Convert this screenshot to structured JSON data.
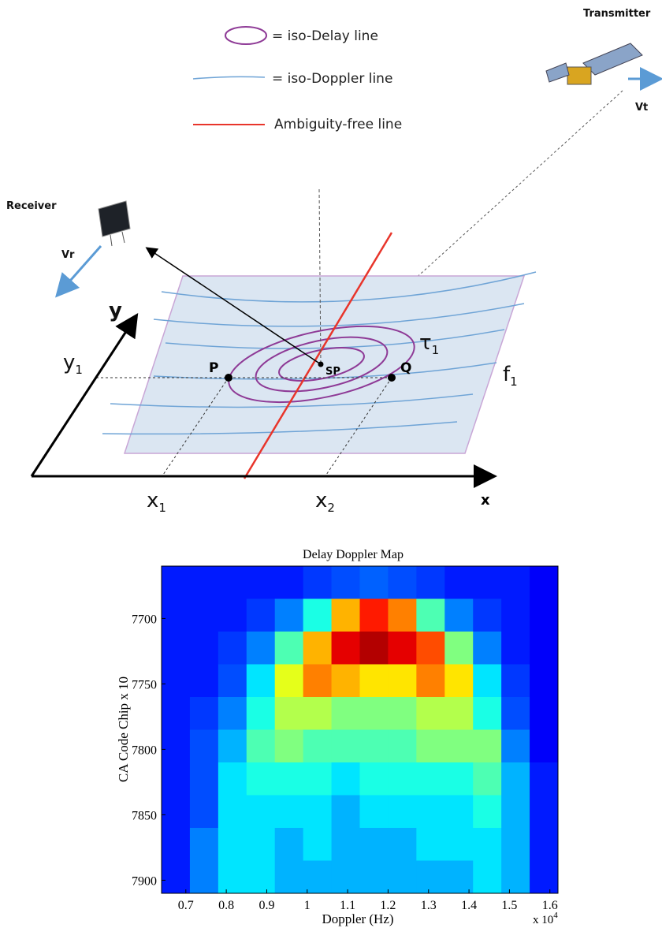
{
  "diagram": {
    "legend": {
      "delay": "= iso-Delay line",
      "doppler": "= iso-Doppler line",
      "ambiguity": "Ambiguity-free line"
    },
    "transmitter": "Transmitter",
    "vt": "Vt",
    "receiver": "Receiver",
    "vr": "Vr",
    "y_axis": "y",
    "x_axis": "x",
    "y1": {
      "base": "y",
      "sub": "1"
    },
    "x1": {
      "base": "x",
      "sub": "1"
    },
    "x2": {
      "base": "x",
      "sub": "2"
    },
    "f1": {
      "base": "f",
      "sub": "1"
    },
    "tau1": {
      "base": "τ",
      "sub": "1"
    },
    "p": "P",
    "sp": "SP",
    "q": "Q"
  },
  "chart_data": {
    "type": "heatmap",
    "title": "Delay Doppler Map",
    "x_label": "Doppler (Hz)",
    "y_label": "CA Code Chip x 10",
    "x_multiplier": {
      "base": "x 10",
      "exponent": "4"
    },
    "colormap": "jet",
    "xlim": [
      0.64,
      1.62
    ],
    "ylim": [
      7910,
      7660
    ],
    "xticks": [
      0.7,
      0.8,
      0.9,
      1,
      1.1,
      1.2,
      1.3,
      1.4,
      1.5,
      1.6
    ],
    "yticks": [
      7700,
      7750,
      7800,
      7850,
      7900
    ],
    "x_edges": [
      0.64,
      0.71,
      0.78,
      0.85,
      0.92,
      0.99,
      1.06,
      1.13,
      1.2,
      1.27,
      1.34,
      1.41,
      1.48,
      1.55,
      1.62
    ],
    "y_edges": [
      7660,
      7685,
      7710,
      7735,
      7760,
      7785,
      7810,
      7835,
      7860,
      7885,
      7910
    ],
    "z": [
      [
        0.15,
        0.15,
        0.15,
        0.15,
        0.15,
        0.18,
        0.2,
        0.22,
        0.2,
        0.18,
        0.15,
        0.15,
        0.15,
        0.12
      ],
      [
        0.15,
        0.15,
        0.15,
        0.18,
        0.25,
        0.4,
        0.7,
        0.85,
        0.75,
        0.45,
        0.25,
        0.18,
        0.15,
        0.12
      ],
      [
        0.15,
        0.15,
        0.18,
        0.25,
        0.45,
        0.7,
        0.9,
        0.95,
        0.9,
        0.8,
        0.5,
        0.25,
        0.15,
        0.12
      ],
      [
        0.15,
        0.15,
        0.2,
        0.35,
        0.6,
        0.75,
        0.7,
        0.65,
        0.65,
        0.75,
        0.65,
        0.35,
        0.18,
        0.12
      ],
      [
        0.15,
        0.18,
        0.25,
        0.4,
        0.55,
        0.55,
        0.5,
        0.5,
        0.5,
        0.55,
        0.55,
        0.4,
        0.2,
        0.12
      ],
      [
        0.15,
        0.2,
        0.3,
        0.45,
        0.5,
        0.45,
        0.45,
        0.45,
        0.45,
        0.5,
        0.5,
        0.5,
        0.25,
        0.12
      ],
      [
        0.15,
        0.2,
        0.35,
        0.4,
        0.4,
        0.4,
        0.35,
        0.4,
        0.4,
        0.4,
        0.4,
        0.45,
        0.3,
        0.15
      ],
      [
        0.15,
        0.2,
        0.35,
        0.35,
        0.35,
        0.35,
        0.3,
        0.35,
        0.35,
        0.35,
        0.35,
        0.4,
        0.3,
        0.15
      ],
      [
        0.15,
        0.25,
        0.35,
        0.35,
        0.3,
        0.35,
        0.3,
        0.3,
        0.3,
        0.35,
        0.35,
        0.35,
        0.3,
        0.15
      ],
      [
        0.15,
        0.25,
        0.35,
        0.35,
        0.3,
        0.3,
        0.3,
        0.3,
        0.3,
        0.3,
        0.3,
        0.35,
        0.3,
        0.15
      ]
    ]
  }
}
